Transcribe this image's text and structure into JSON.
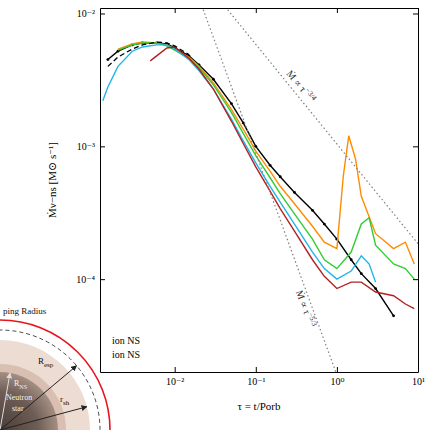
{
  "chart_data": {
    "type": "line",
    "ylabel": "Ṁν−ns [M⊙ s⁻¹]",
    "xlabel": "τ = t/Porb",
    "log": true,
    "grid": false,
    "xlim": [
      0.0012,
      10
    ],
    "ylim": [
      2e-05,
      0.011
    ],
    "xticks": [
      {
        "value": 0.01,
        "label": "10⁻²"
      },
      {
        "value": 0.1,
        "label": "10⁻¹"
      },
      {
        "value": 1,
        "label": "10⁰"
      },
      {
        "value": 10,
        "label": "10¹"
      }
    ],
    "yticks": [
      {
        "value": 0.0001,
        "label": "10⁻⁴"
      },
      {
        "value": 0.001,
        "label": "10⁻³"
      },
      {
        "value": 0.01,
        "label": "10⁻²"
      }
    ],
    "series": [
      {
        "color": "#000000",
        "marker": "dot",
        "line_style": "solid",
        "x": [
          0.0015,
          0.002,
          0.003,
          0.004,
          0.006,
          0.008,
          0.01,
          0.015,
          0.02,
          0.03,
          0.05,
          0.07,
          0.1,
          0.15,
          0.2,
          0.3,
          0.5,
          0.7,
          1,
          1.5,
          2,
          3,
          5
        ],
        "values": [
          0.0045,
          0.0052,
          0.0058,
          0.006,
          0.006,
          0.0059,
          0.0055,
          0.0048,
          0.0041,
          0.0032,
          0.0021,
          0.0015,
          0.001,
          0.00072,
          0.00059,
          0.00045,
          0.00033,
          0.00026,
          0.0002,
          0.00014,
          0.00011,
          8.5e-05,
          5.3e-05
        ]
      },
      {
        "color": "#ff8c00",
        "line_style": "solid",
        "x": [
          0.002,
          0.003,
          0.004,
          0.006,
          0.008,
          0.01,
          0.015,
          0.02,
          0.03,
          0.05,
          0.07,
          0.1,
          0.15,
          0.2,
          0.3,
          0.5,
          0.7,
          1,
          1.2,
          1.4,
          1.7,
          2,
          3,
          5,
          7,
          9
        ],
        "values": [
          0.0054,
          0.0059,
          0.0061,
          0.006,
          0.0058,
          0.0054,
          0.0047,
          0.004,
          0.003,
          0.0019,
          0.00135,
          0.00092,
          0.00065,
          0.0005,
          0.00037,
          0.00025,
          0.00019,
          0.00017,
          0.0006,
          0.0012,
          0.0008,
          0.00042,
          0.00022,
          0.00017,
          0.00019,
          0.00013
        ]
      },
      {
        "color": "#32cd32",
        "line_style": "solid",
        "x": [
          0.002,
          0.003,
          0.004,
          0.006,
          0.008,
          0.01,
          0.015,
          0.02,
          0.03,
          0.05,
          0.07,
          0.1,
          0.15,
          0.2,
          0.3,
          0.5,
          0.7,
          1,
          1.5,
          2,
          2.5,
          3,
          5,
          7,
          9
        ],
        "values": [
          0.0053,
          0.0058,
          0.006,
          0.006,
          0.0057,
          0.0053,
          0.0046,
          0.0039,
          0.0029,
          0.0018,
          0.00125,
          0.00085,
          0.00058,
          0.00044,
          0.00031,
          0.0002,
          0.00014,
          0.00012,
          0.00016,
          0.00026,
          0.00029,
          0.00018,
          0.00013,
          0.00012,
          0.0001
        ]
      },
      {
        "color": "#1fb5e8",
        "line_style": "solid",
        "x": [
          0.0013,
          0.0015,
          0.002,
          0.003,
          0.004,
          0.006,
          0.008,
          0.01,
          0.015,
          0.02,
          0.03,
          0.05,
          0.07,
          0.1,
          0.15,
          0.2,
          0.3,
          0.5,
          0.7,
          1,
          1.5,
          2,
          2.5,
          3
        ],
        "values": [
          0.0022,
          0.0028,
          0.004,
          0.0052,
          0.0056,
          0.0058,
          0.0058,
          0.0054,
          0.0045,
          0.0037,
          0.0027,
          0.0016,
          0.0011,
          0.00075,
          0.0005,
          0.00038,
          0.00026,
          0.00016,
          0.00012,
          0.0001,
          0.000115,
          0.00015,
          0.00013,
          9.5e-05
        ]
      },
      {
        "color": "#b22222",
        "line_style": "solid",
        "x": [
          0.005,
          0.006,
          0.008,
          0.01,
          0.015,
          0.02,
          0.03,
          0.05,
          0.07,
          0.1,
          0.15,
          0.2,
          0.3,
          0.5,
          0.7,
          1,
          1.5,
          2,
          3,
          5,
          7,
          9
        ],
        "values": [
          0.0044,
          0.0048,
          0.0055,
          0.0056,
          0.0046,
          0.0038,
          0.0027,
          0.00155,
          0.00105,
          0.0007,
          0.00046,
          0.00034,
          0.00023,
          0.00014,
          0.000105,
          8.5e-05,
          9.5e-05,
          9.5e-05,
          8e-05,
          7.5e-05,
          6.5e-05,
          6e-05
        ]
      },
      {
        "color": "#000000",
        "line_style": "dashed",
        "x": [
          0.0015,
          0.002,
          0.003,
          0.004,
          0.006,
          0.008,
          0.01,
          0.015
        ],
        "values": [
          0.004,
          0.0047,
          0.0054,
          0.0058,
          0.0061,
          0.006,
          0.0057,
          0.0049
        ]
      }
    ],
    "reference_lines": [
      {
        "label": "Ṁ ∝ τ",
        "label_sup": "−3/4",
        "color": "#808080",
        "line_style": "dotted",
        "x": [
          0.01,
          10
        ],
        "values": [
          0.033,
          0.000185
        ]
      },
      {
        "label": "Ṁ ∝ τ",
        "label_sup": "−5/3",
        "color": "#808080",
        "line_style": "dotted",
        "x": [
          0.02,
          1
        ],
        "values": [
          0.013,
          1.9e-05
        ]
      }
    ],
    "annotations": [
      {
        "text": "ion NS"
      },
      {
        "text": "ion NS"
      }
    ]
  },
  "inset": {
    "star_label": "Neutron star",
    "labels": [
      {
        "text": "R",
        "sub": "NS"
      },
      {
        "text": "r",
        "sub": "sh"
      },
      {
        "text": "R",
        "sub": "esp"
      }
    ],
    "outer_label": "ping Radius"
  }
}
